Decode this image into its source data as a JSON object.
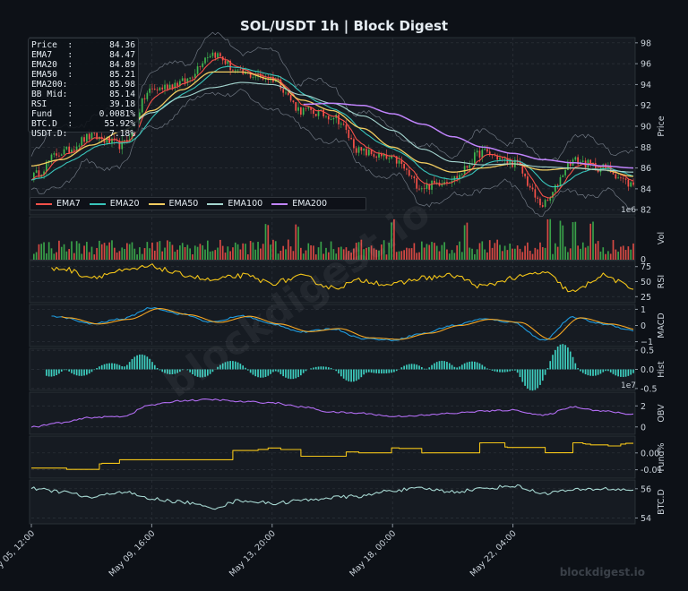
{
  "title": "SOL/USDT  1h  |  Block Digest",
  "brand": "blockdigest.io",
  "watermark": "blockdigest.io",
  "info": [
    {
      "k": "Price  :",
      "v": "84.36"
    },
    {
      "k": "EMA7   :",
      "v": "84.47"
    },
    {
      "k": "EMA20  :",
      "v": "84.89"
    },
    {
      "k": "EMA50  :",
      "v": "85.21"
    },
    {
      "k": "EMA200:",
      "v": "85.98"
    },
    {
      "k": "BB Mid:",
      "v": "85.14"
    },
    {
      "k": "RSI    :",
      "v": "39.18"
    },
    {
      "k": "Fund   :",
      "v": "0.0081%"
    },
    {
      "k": "BTC.D  :",
      "v": "55.92%"
    },
    {
      "k": "USDT.D:",
      "v": "7.18%"
    }
  ],
  "colors": {
    "background": "#0d1117",
    "panel": "#161b22",
    "grid": "#2d333b",
    "up": "#3fb950",
    "down": "#f85149",
    "ema7": "#f85149",
    "ema20": "#39c5bb",
    "ema50": "#f2cc60",
    "ema100": "#a5d6d0",
    "ema200": "#c084fc",
    "rsi": "#f2c418",
    "macd": "#1f9bde",
    "signal": "#f5a623",
    "hist": "#3ecfc0",
    "obv": "#b06cf0",
    "fund": "#f2c418",
    "btcd": "#a5d6d0"
  },
  "chart_data": {
    "type": "line",
    "x_ticks": [
      "May 05, 12:00",
      "May 09, 16:00",
      "May 13, 20:00",
      "May 18, 00:00",
      "May 22, 04:00"
    ],
    "panels": [
      {
        "name": "Price",
        "ylabel": "Price",
        "yticks": [
          82,
          84,
          86,
          88,
          90,
          92,
          94,
          96,
          98
        ],
        "ylim": [
          81.5,
          98.5
        ],
        "offset_label": "1e6",
        "legend": [
          "EMA7",
          "EMA20",
          "EMA50",
          "EMA100",
          "EMA200"
        ],
        "anchors_x": [
          0,
          0.05,
          0.1,
          0.15,
          0.2,
          0.25,
          0.3,
          0.35,
          0.4,
          0.45,
          0.5,
          0.55,
          0.6,
          0.65,
          0.7,
          0.75,
          0.8,
          0.85,
          0.9,
          0.95,
          1.0
        ],
        "close": [
          85.2,
          87.5,
          89,
          88.2,
          93.5,
          94.2,
          97,
          95,
          94.6,
          91.5,
          91,
          87.5,
          86.8,
          84.2,
          85,
          87.5,
          86.5,
          82.5,
          86.7,
          86,
          84.4
        ],
        "ema50": [
          86.2,
          86.8,
          88.2,
          89.5,
          91.5,
          93.5,
          95.2,
          95.2,
          94.5,
          92.5,
          91.5,
          89.8,
          88,
          86.5,
          85.6,
          86,
          86.4,
          85.8,
          86,
          85.8,
          85.2
        ],
        "ema100": [
          null,
          null,
          null,
          89.6,
          91.3,
          92.8,
          93.7,
          94.2,
          94,
          93,
          92.2,
          91,
          89.6,
          87.8,
          86.6,
          86.3,
          86.4,
          86.1,
          86,
          85.8,
          85.6
        ],
        "ema200": [
          null,
          null,
          null,
          null,
          null,
          null,
          null,
          null,
          null,
          92.1,
          92.2,
          92,
          91.2,
          90.2,
          89,
          88,
          87.4,
          86.8,
          86.5,
          86.2,
          86
        ],
        "volume_spikes_x": [
          0.39,
          0.44,
          0.6,
          0.72,
          0.86,
          0.88,
          0.9,
          0.93
        ]
      },
      {
        "name": "RSI",
        "ylabel": "RSI",
        "yticks": [
          25,
          50,
          75
        ],
        "ylim": [
          15,
          85
        ]
      },
      {
        "name": "MACD",
        "ylabel": "MACD",
        "yticks": [
          -1,
          0,
          1
        ],
        "ylim": [
          -1.3,
          1.3
        ]
      },
      {
        "name": "Hist",
        "ylabel": "Hist",
        "yticks": [
          -0.5,
          0.0,
          0.5
        ],
        "ylim": [
          -0.55,
          0.55
        ],
        "offset_label": "1e7"
      },
      {
        "name": "OBV",
        "ylabel": "OBV",
        "yticks": [
          0,
          2
        ],
        "ylim": [
          -0.7,
          3.3
        ]
      },
      {
        "name": "Fund%",
        "ylabel": "Fund%",
        "yticks": [
          -0.01,
          0.0
        ],
        "ylim": [
          -0.015,
          0.01
        ]
      },
      {
        "name": "BTC.D",
        "ylabel": "BTC.D",
        "yticks": [
          54,
          56
        ],
        "ylim": [
          53.6,
          56.6
        ]
      }
    ],
    "rsi_values": [
      65,
      72,
      58,
      67,
      75,
      62,
      52,
      60,
      48,
      58,
      40,
      52,
      45,
      56,
      60,
      42,
      56,
      65,
      33,
      60,
      39
    ],
    "macd_values": [
      1.0,
      0.5,
      0.1,
      0.4,
      1.1,
      0.7,
      0.2,
      0.6,
      0.1,
      -0.4,
      -0.2,
      -0.8,
      -0.9,
      -0.5,
      0.0,
      0.4,
      0.2,
      -0.9,
      0.5,
      0.1,
      -0.3
    ],
    "obv_values": [
      0,
      0.4,
      0.9,
      1.0,
      2.1,
      2.5,
      2.6,
      2.4,
      2.3,
      1.9,
      1.4,
      1.3,
      1.0,
      1.1,
      1.3,
      1.5,
      1.6,
      1.1,
      1.9,
      1.5,
      1.2
    ],
    "fund_values": [
      -0.009,
      -0.01,
      -0.007,
      -0.004,
      -0.001,
      0.0,
      0.003,
      0.001,
      0.003,
      -0.002,
      0.001,
      0.0,
      0.003,
      0.0,
      0.005,
      0.006,
      0.003,
      0.0,
      0.006,
      0.004,
      0.006
    ],
    "btcd_values": [
      56.0,
      55.8,
      55.4,
      55.8,
      55.3,
      55.1,
      54.7,
      55.2,
      55.0,
      55.2,
      55.4,
      55.5,
      55.9,
      56.0,
      55.8,
      56.0,
      56.2,
      55.7,
      55.9,
      56.0,
      55.9
    ]
  }
}
